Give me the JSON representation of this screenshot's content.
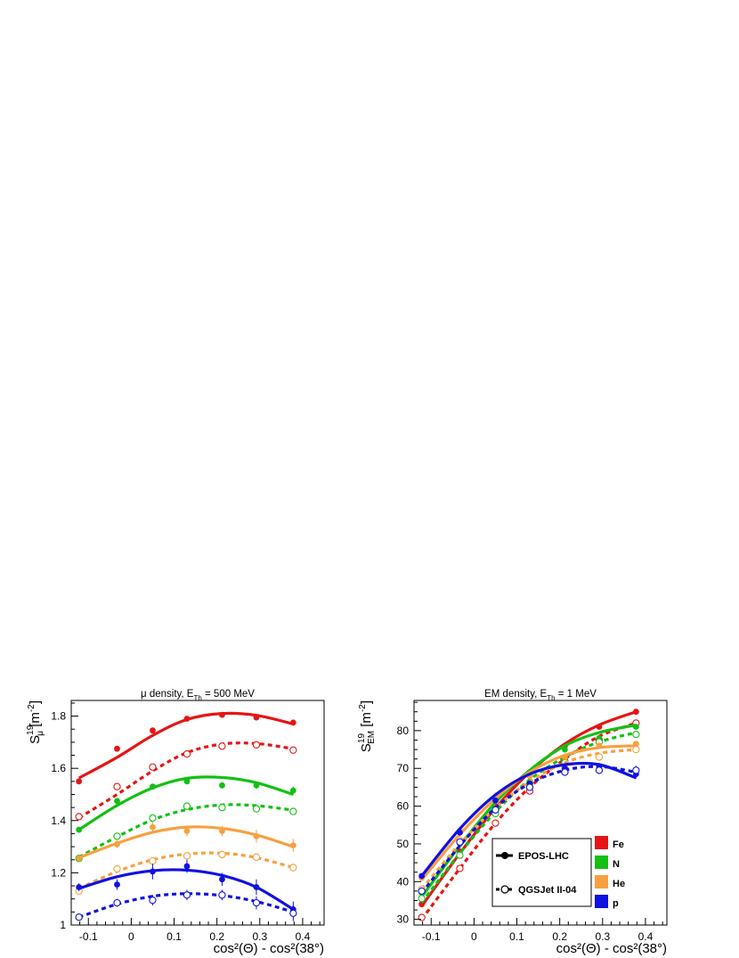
{
  "figure": {
    "legend_model": {
      "epos_label": "EPOS-LHC",
      "qgsjet_label": "QGSJet II-04"
    },
    "legend_species": [
      {
        "name": "Fe",
        "color": "#e51515"
      },
      {
        "name": "N",
        "color": "#13c013"
      },
      {
        "name": "He",
        "color": "#f7a040"
      },
      {
        "name": "p",
        "color": "#1111e0"
      }
    ]
  },
  "chart_data": [
    {
      "type": "scatter",
      "title_parts": {
        "pre": "μ density, E",
        "sub": "Th",
        "post": " = 500 MeV"
      },
      "xlabel": "cos²(Θ) - cos²(38°)",
      "ylabel_parts": {
        "base": "S",
        "sup": "19",
        "sub": "μ",
        "unit": " [m",
        "unit_sup": "-2",
        "unit_end": "]"
      },
      "xlim": [
        -0.14,
        0.45
      ],
      "ylim": [
        1.0,
        1.86
      ],
      "xticks": [
        -0.1,
        0,
        0.1,
        0.2,
        0.3,
        0.4
      ],
      "xtick_labels": [
        "-0.1",
        "0",
        "0.1",
        "0.2",
        "0.3",
        "0.4"
      ],
      "yticks": [
        1.0,
        1.2,
        1.4,
        1.6,
        1.8
      ],
      "ytick_labels": [
        "1",
        "1.2",
        "1.4",
        "1.6",
        "1.8"
      ],
      "x": [
        -0.122,
        -0.033,
        0.05,
        0.13,
        0.212,
        0.292,
        0.378
      ],
      "series": [
        {
          "name": "Fe",
          "model": "EPOS-LHC",
          "color": "#e51515",
          "style": "solid",
          "marker": "filled",
          "values": [
            1.55,
            1.675,
            1.745,
            1.79,
            1.805,
            1.795,
            1.775
          ],
          "err": [
            0.01,
            0.01,
            0.01,
            0.01,
            0.01,
            0.01,
            0.012
          ],
          "fit": [
            1.563,
            1.642,
            1.726,
            1.787,
            1.81,
            1.803,
            1.77
          ]
        },
        {
          "name": "Fe",
          "model": "QGSJet II-04",
          "color": "#e51515",
          "style": "dashed",
          "marker": "open",
          "values": [
            1.415,
            1.53,
            1.605,
            1.655,
            1.685,
            1.69,
            1.67
          ],
          "err": [
            0.01,
            0.01,
            0.01,
            0.01,
            0.01,
            0.01,
            0.01
          ],
          "fit": [
            1.41,
            1.5,
            1.59,
            1.66,
            1.693,
            1.695,
            1.675
          ]
        },
        {
          "name": "N",
          "model": "EPOS-LHC",
          "color": "#13c013",
          "style": "solid",
          "marker": "filled",
          "values": [
            1.365,
            1.475,
            1.53,
            1.55,
            1.535,
            1.535,
            1.515
          ],
          "err": [
            0.01,
            0.01,
            0.01,
            0.01,
            0.012,
            0.015,
            0.015
          ],
          "fit": [
            1.365,
            1.458,
            1.525,
            1.562,
            1.565,
            1.545,
            1.5
          ]
        },
        {
          "name": "N",
          "model": "QGSJet II-04",
          "color": "#13c013",
          "style": "dashed",
          "marker": "open",
          "values": [
            1.255,
            1.34,
            1.41,
            1.455,
            1.45,
            1.445,
            1.435
          ],
          "err": [
            0.01,
            0.01,
            0.01,
            0.01,
            0.01,
            0.012,
            0.012
          ],
          "fit": [
            1.26,
            1.338,
            1.403,
            1.442,
            1.46,
            1.457,
            1.44
          ]
        },
        {
          "name": "He",
          "model": "EPOS-LHC",
          "color": "#f7a040",
          "style": "solid",
          "marker": "filled",
          "values": [
            1.255,
            1.31,
            1.375,
            1.36,
            1.36,
            1.34,
            1.305
          ],
          "err": [
            0.01,
            0.015,
            0.02,
            0.02,
            0.02,
            0.025,
            0.025
          ],
          "fit": [
            1.258,
            1.313,
            1.355,
            1.375,
            1.37,
            1.345,
            1.3
          ]
        },
        {
          "name": "He",
          "model": "QGSJet II-04",
          "color": "#f7a040",
          "style": "dashed",
          "marker": "open",
          "values": [
            1.13,
            1.215,
            1.245,
            1.265,
            1.27,
            1.26,
            1.22
          ],
          "err": [
            0.01,
            0.012,
            0.015,
            0.015,
            0.015,
            0.015,
            0.015
          ],
          "fit": [
            1.14,
            1.205,
            1.25,
            1.272,
            1.275,
            1.258,
            1.22
          ]
        },
        {
          "name": "p",
          "model": "EPOS-LHC",
          "color": "#1111e0",
          "style": "solid",
          "marker": "filled",
          "values": [
            1.145,
            1.155,
            1.205,
            1.225,
            1.175,
            1.145,
            1.06
          ],
          "err": [
            0.015,
            0.02,
            0.03,
            0.025,
            0.025,
            0.03,
            0.03
          ],
          "fit": [
            1.14,
            1.185,
            1.208,
            1.21,
            1.19,
            1.145,
            1.06
          ]
        },
        {
          "name": "p",
          "model": "QGSJet II-04",
          "color": "#1111e0",
          "style": "dashed",
          "marker": "open",
          "values": [
            1.03,
            1.085,
            1.095,
            1.115,
            1.115,
            1.085,
            1.045
          ],
          "err": [
            0.012,
            0.015,
            0.02,
            0.02,
            0.02,
            0.025,
            0.03
          ],
          "fit": [
            1.03,
            1.08,
            1.11,
            1.12,
            1.113,
            1.09,
            1.05
          ]
        }
      ]
    },
    {
      "type": "scatter",
      "title_parts": {
        "pre": "EM density, E",
        "sub": "Th",
        "post": " = 1 MeV"
      },
      "xlabel": "cos²(Θ) - cos²(38°)",
      "ylabel_parts": {
        "base": "S",
        "sup": "19",
        "sub": "EM",
        "unit": " [m",
        "unit_sup": "-2",
        "unit_end": "]"
      },
      "xlim": [
        -0.14,
        0.45
      ],
      "ylim": [
        28.5,
        88
      ],
      "xticks": [
        -0.1,
        0,
        0.1,
        0.2,
        0.3,
        0.4
      ],
      "xtick_labels": [
        "-0.1",
        "0",
        "0.1",
        "0.2",
        "0.3",
        "0.4"
      ],
      "yticks": [
        30,
        40,
        50,
        60,
        70,
        80
      ],
      "ytick_labels": [
        "30",
        "40",
        "50",
        "60",
        "70",
        "80"
      ],
      "x": [
        -0.122,
        -0.033,
        0.05,
        0.13,
        0.212,
        0.292,
        0.378
      ],
      "series": [
        {
          "name": "Fe",
          "model": "EPOS-LHC",
          "color": "#e51515",
          "style": "solid",
          "marker": "filled",
          "values": [
            34,
            48,
            60,
            68,
            76,
            81,
            85
          ],
          "err": [
            0.5,
            0.5,
            0.5,
            0.5,
            0.5,
            0.5,
            0.5
          ],
          "fit": [
            33.5,
            47.5,
            59.5,
            69,
            76.5,
            81.5,
            85
          ]
        },
        {
          "name": "Fe",
          "model": "QGSJet II-04",
          "color": "#e51515",
          "style": "dashed",
          "marker": "open",
          "values": [
            30.5,
            43.5,
            55.5,
            64,
            72,
            77.5,
            82
          ],
          "err": [
            0.5,
            0.5,
            0.5,
            0.5,
            0.5,
            0.5,
            0.5
          ],
          "fit": [
            30,
            43.5,
            55.5,
            65,
            72.5,
            78.5,
            82
          ]
        },
        {
          "name": "N",
          "model": "EPOS-LHC",
          "color": "#13c013",
          "style": "solid",
          "marker": "filled",
          "values": [
            37,
            50,
            62,
            69,
            75,
            78,
            81
          ],
          "err": [
            0.5,
            0.5,
            0.5,
            0.5,
            0.5,
            0.6,
            0.6
          ],
          "fit": [
            36,
            49.5,
            61,
            69.5,
            76,
            79.5,
            81.5
          ]
        },
        {
          "name": "N",
          "model": "QGSJet II-04",
          "color": "#13c013",
          "style": "dashed",
          "marker": "open",
          "values": [
            35.5,
            47,
            58,
            66,
            71.5,
            77,
            79
          ],
          "err": [
            0.5,
            0.5,
            0.5,
            0.5,
            0.5,
            0.6,
            0.6
          ],
          "fit": [
            34.5,
            47.5,
            58.5,
            67,
            73,
            77,
            79.5
          ]
        },
        {
          "name": "He",
          "model": "EPOS-LHC",
          "color": "#f7a040",
          "style": "solid",
          "marker": "filled",
          "values": [
            41,
            53.5,
            62.5,
            68,
            73,
            76,
            76.5
          ],
          "err": [
            0.5,
            0.5,
            0.5,
            0.5,
            0.6,
            0.6,
            0.6
          ],
          "fit": [
            40.5,
            52.5,
            62,
            69,
            73.5,
            75.5,
            76
          ]
        },
        {
          "name": "He",
          "model": "QGSJet II-04",
          "color": "#f7a040",
          "style": "dashed",
          "marker": "open",
          "values": [
            38,
            51,
            59,
            65,
            70,
            73,
            75
          ],
          "err": [
            0.5,
            0.5,
            0.5,
            0.5,
            0.6,
            0.6,
            0.7
          ],
          "fit": [
            38,
            50,
            59.5,
            66.5,
            71.5,
            74,
            75
          ]
        },
        {
          "name": "p",
          "model": "EPOS-LHC",
          "color": "#1111e0",
          "style": "solid",
          "marker": "filled",
          "values": [
            41.5,
            53,
            61.5,
            66,
            70,
            70.5,
            68.5
          ],
          "err": [
            0.5,
            0.6,
            0.6,
            0.7,
            0.8,
            1.0,
            1.2
          ],
          "fit": [
            41.5,
            54,
            63,
            68.5,
            71,
            71,
            67.5
          ]
        },
        {
          "name": "p",
          "model": "QGSJet II-04",
          "color": "#1111e0",
          "style": "dashed",
          "marker": "open",
          "values": [
            37.5,
            50.5,
            59,
            65,
            69,
            69.5,
            69.5
          ],
          "err": [
            0.5,
            0.6,
            0.6,
            0.7,
            0.8,
            1.0,
            1.2
          ],
          "fit": [
            37,
            49.5,
            59.5,
            66,
            69.5,
            70.5,
            69
          ]
        }
      ]
    }
  ]
}
